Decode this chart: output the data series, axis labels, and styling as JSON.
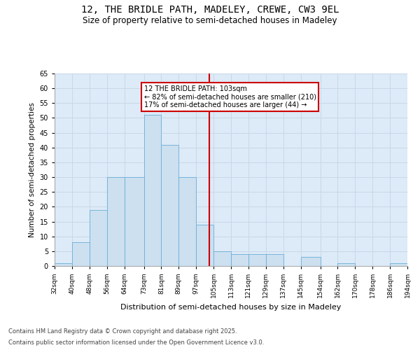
{
  "title_line1": "12, THE BRIDLE PATH, MADELEY, CREWE, CW3 9EL",
  "title_line2": "Size of property relative to semi-detached houses in Madeley",
  "xlabel": "Distribution of semi-detached houses by size in Madeley",
  "ylabel": "Number of semi-detached properties",
  "annotation_title": "12 THE BRIDLE PATH: 103sqm",
  "annotation_line2": "← 82% of semi-detached houses are smaller (210)",
  "annotation_line3": "17% of semi-detached houses are larger (44) →",
  "property_size": 103,
  "bin_edges": [
    32,
    40,
    48,
    56,
    64,
    73,
    81,
    89,
    97,
    105,
    113,
    121,
    129,
    137,
    145,
    154,
    162,
    170,
    178,
    186,
    194
  ],
  "bar_heights": [
    1,
    8,
    19,
    30,
    30,
    51,
    41,
    30,
    14,
    5,
    4,
    4,
    4,
    0,
    3,
    0,
    1,
    0,
    0,
    1
  ],
  "bar_facecolor": "#cce0f0",
  "bar_edgecolor": "#6aaed6",
  "vline_color": "#cc0000",
  "grid_color": "#c8d8e8",
  "background_color": "#ddeaf7",
  "ylim": [
    0,
    65
  ],
  "yticks": [
    0,
    5,
    10,
    15,
    20,
    25,
    30,
    35,
    40,
    45,
    50,
    55,
    60,
    65
  ],
  "footnote_line1": "Contains HM Land Registry data © Crown copyright and database right 2025.",
  "footnote_line2": "Contains public sector information licensed under the Open Government Licence v3.0.",
  "fig_bg": "#ffffff"
}
